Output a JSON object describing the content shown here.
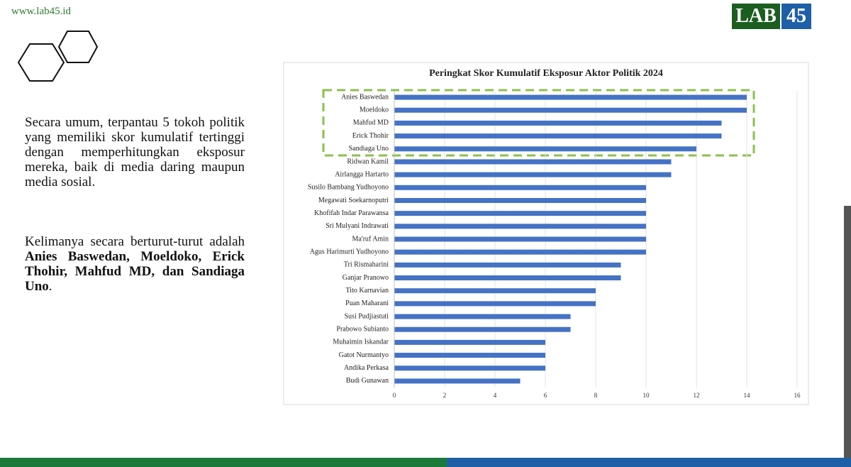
{
  "site": "www.lab45.id",
  "logo": [
    "LAB",
    "45"
  ],
  "paragraphs": [
    "Secara umum, terpantau 5 tokoh politik yang memiliki skor kumulatif tertinggi dengan memperhitungkan eksposur mereka, baik di media daring maupun media sosial.",
    [
      {
        "text": "Kelimanya secara berturut-turut adalah ",
        "bold": false
      },
      {
        "text": "Anies Baswedan, Moeldoko, Erick Thohir, Mahfud MD, dan Sandiaga Uno",
        "bold": true
      },
      {
        "text": ".",
        "bold": false
      }
    ]
  ],
  "chart_data": {
    "type": "bar",
    "orientation": "horizontal",
    "title": "Peringkat Skor Kumulatif Eksposur Aktor Politik 2024",
    "categories": [
      "Anies Baswedan",
      "Moeldoko",
      "Mahfud MD",
      "Erick Thohir",
      "Sandiaga Uno",
      "Ridwan Kamil",
      "Airlangga Hartarto",
      "Susilo Bambang Yudhoyono",
      "Megawati Soekarnoputri",
      "Khofifah Indar Parawansa",
      "Sri Mulyani Indrawati",
      "Ma'ruf Amin",
      "Agus Harimurti Yudhoyono",
      "Tri Rismaharini",
      "Ganjar Pranowo",
      "Tito Karnavian",
      "Puan Maharani",
      "Susi Pudjiastuti",
      "Prabowo Subianto",
      "Muhaimin Iskandar",
      "Gatot Nurmantyo",
      "Andika Perkasa",
      "Budi Gunawan"
    ],
    "values": [
      14,
      14,
      13,
      13,
      12,
      11,
      11,
      10,
      10,
      10,
      10,
      10,
      10,
      9,
      9,
      8,
      8,
      7,
      7,
      6,
      6,
      6,
      5
    ],
    "color": "#4472c4",
    "xlim": [
      0,
      16
    ],
    "xticks": [
      0,
      2,
      4,
      6,
      8,
      10,
      12,
      14,
      16
    ],
    "grid": true
  }
}
